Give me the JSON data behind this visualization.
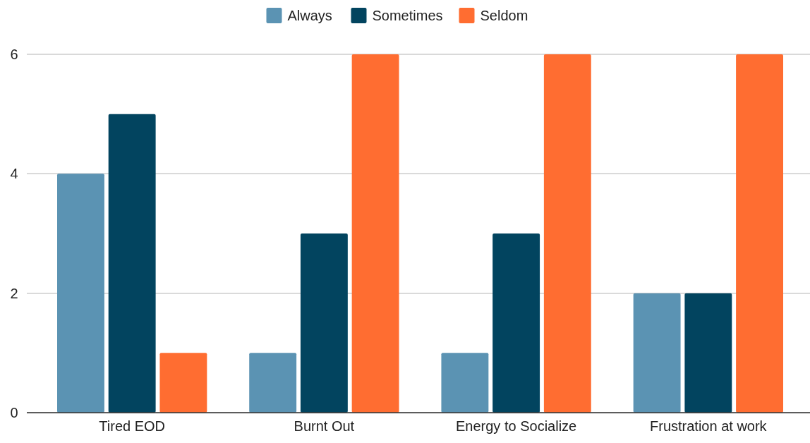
{
  "chart_data": {
    "type": "bar",
    "categories": [
      "Tired EOD",
      "Burnt Out",
      "Energy to Socialize",
      "Frustration at work"
    ],
    "series": [
      {
        "name": "Always",
        "color": "#5b93b3",
        "values": [
          4,
          1,
          1,
          2
        ]
      },
      {
        "name": "Sometimes",
        "color": "#02445f",
        "values": [
          5,
          3,
          3,
          2
        ]
      },
      {
        "name": "Seldom",
        "color": "#ff6d31",
        "values": [
          1,
          6,
          6,
          6
        ]
      }
    ],
    "ylim": [
      0,
      6
    ],
    "yticks": [
      0,
      2,
      4,
      6
    ],
    "grid": "y",
    "legend": "top"
  }
}
